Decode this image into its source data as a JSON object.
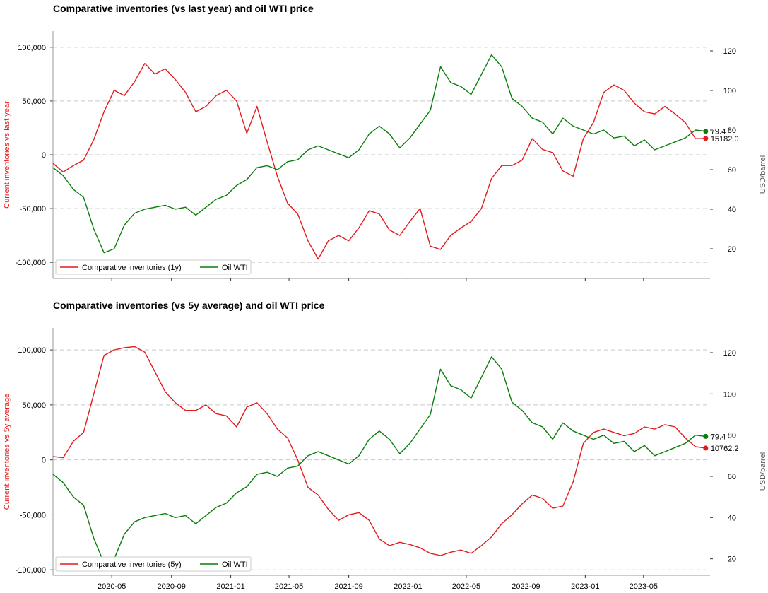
{
  "chart_data": [
    {
      "type": "line",
      "title": "Comparative inventories (vs last year) and oil WTI price",
      "ylabel": "Current inventories vs last year",
      "y2label": "USD/barrel",
      "ylim": [
        115000,
        -115000
      ],
      "y2lim": [
        5,
        130
      ],
      "yticks": [
        "-100,000",
        "-50,000",
        "0",
        "50,000",
        "100,000"
      ],
      "y2ticks": [
        "20",
        "40",
        "60",
        "80",
        "100",
        "120"
      ],
      "xticks": [],
      "xlim": [
        "2020-01-01",
        "2023-09-15"
      ],
      "grid": "y dashed",
      "legend": "lower-left",
      "series": [
        {
          "name": "Comparative inventories (1y)",
          "axis": "left",
          "color": "#e31a1c",
          "x": [
            "2020-01-01",
            "2020-01-22",
            "2020-02-12",
            "2020-03-04",
            "2020-03-25",
            "2020-04-15",
            "2020-05-06",
            "2020-05-27",
            "2020-06-17",
            "2020-07-08",
            "2020-07-29",
            "2020-08-19",
            "2020-09-09",
            "2020-09-30",
            "2020-10-21",
            "2020-11-11",
            "2020-12-02",
            "2020-12-23",
            "2021-01-13",
            "2021-02-03",
            "2021-02-24",
            "2021-03-17",
            "2021-04-07",
            "2021-04-28",
            "2021-05-19",
            "2021-06-09",
            "2021-06-30",
            "2021-07-21",
            "2021-08-11",
            "2021-09-01",
            "2021-09-22",
            "2021-10-13",
            "2021-11-03",
            "2021-11-24",
            "2021-12-15",
            "2022-01-05",
            "2022-01-26",
            "2022-02-16",
            "2022-03-09",
            "2022-03-30",
            "2022-04-20",
            "2022-05-11",
            "2022-06-01",
            "2022-06-22",
            "2022-07-13",
            "2022-08-03",
            "2022-08-24",
            "2022-09-14",
            "2022-10-05",
            "2022-10-26",
            "2022-11-16",
            "2022-12-07",
            "2022-12-28",
            "2023-01-18",
            "2023-02-08",
            "2023-03-01",
            "2023-03-22",
            "2023-04-12",
            "2023-05-03",
            "2023-05-24",
            "2023-06-14",
            "2023-07-05",
            "2023-07-26",
            "2023-08-16",
            "2023-09-06"
          ],
          "values": [
            -8000,
            -16000,
            -10000,
            -5000,
            14000,
            40000,
            60000,
            55000,
            68000,
            85000,
            75000,
            80000,
            70000,
            58000,
            40000,
            45000,
            55000,
            60000,
            50000,
            20000,
            45000,
            12000,
            -20000,
            -45000,
            -55000,
            -80000,
            -97000,
            -80000,
            -75000,
            -80000,
            -68000,
            -52000,
            -55000,
            -70000,
            -75000,
            -62000,
            -50000,
            -85000,
            -88000,
            -75000,
            -68000,
            -62000,
            -50000,
            -22000,
            -10000,
            -10000,
            -5000,
            15000,
            5000,
            2000,
            -15000,
            -20000,
            15000,
            30000,
            58000,
            65000,
            60000,
            48000,
            40000,
            38000,
            45000,
            38000,
            30000,
            15000,
            15182
          ]
        },
        {
          "name": "Oil WTI",
          "axis": "right",
          "color": "#0a7d0a",
          "x": [
            "2020-01-01",
            "2020-01-22",
            "2020-02-12",
            "2020-03-04",
            "2020-03-25",
            "2020-04-15",
            "2020-05-06",
            "2020-05-27",
            "2020-06-17",
            "2020-07-08",
            "2020-07-29",
            "2020-08-19",
            "2020-09-09",
            "2020-09-30",
            "2020-10-21",
            "2020-11-11",
            "2020-12-02",
            "2020-12-23",
            "2021-01-13",
            "2021-02-03",
            "2021-02-24",
            "2021-03-17",
            "2021-04-07",
            "2021-04-28",
            "2021-05-19",
            "2021-06-09",
            "2021-06-30",
            "2021-07-21",
            "2021-08-11",
            "2021-09-01",
            "2021-09-22",
            "2021-10-13",
            "2021-11-03",
            "2021-11-24",
            "2021-12-15",
            "2022-01-05",
            "2022-01-26",
            "2022-02-16",
            "2022-03-09",
            "2022-03-30",
            "2022-04-20",
            "2022-05-11",
            "2022-06-01",
            "2022-06-22",
            "2022-07-13",
            "2022-08-03",
            "2022-08-24",
            "2022-09-14",
            "2022-10-05",
            "2022-10-26",
            "2022-11-16",
            "2022-12-07",
            "2022-12-28",
            "2023-01-18",
            "2023-02-08",
            "2023-03-01",
            "2023-03-22",
            "2023-04-12",
            "2023-05-03",
            "2023-05-24",
            "2023-06-14",
            "2023-07-05",
            "2023-07-26",
            "2023-08-16",
            "2023-09-06"
          ],
          "values": [
            61,
            57,
            50,
            46,
            30,
            18,
            20,
            32,
            38,
            40,
            41,
            42,
            40,
            41,
            37,
            41,
            45,
            47,
            52,
            55,
            61,
            62,
            60,
            64,
            65,
            70,
            72,
            70,
            68,
            66,
            70,
            78,
            82,
            78,
            71,
            76,
            83,
            90,
            112,
            104,
            102,
            98,
            108,
            118,
            112,
            96,
            92,
            86,
            84,
            78,
            86,
            82,
            80,
            78,
            80,
            76,
            77,
            72,
            75,
            70,
            72,
            74,
            76,
            80,
            79.4
          ]
        }
      ],
      "end_labels": [
        {
          "series": "Oil WTI",
          "text": "79.4"
        },
        {
          "series": "Comparative inventories (1y)",
          "text": "15182.0"
        }
      ]
    },
    {
      "type": "line",
      "title": "Comparative inventories (vs 5y average) and oil WTI price",
      "ylabel": "Current inventories vs 5y average",
      "y2label": "USD/barrel",
      "ylim": [
        120000,
        -105000
      ],
      "y2lim": [
        12,
        132
      ],
      "yticks": [
        "-100,000",
        "-50,000",
        "0",
        "50,000",
        "100,000"
      ],
      "y2ticks": [
        "20",
        "40",
        "60",
        "80",
        "100",
        "120"
      ],
      "xticks": [
        "2020-05",
        "2020-09",
        "2021-01",
        "2021-05",
        "2021-09",
        "2022-01",
        "2022-05",
        "2022-09",
        "2023-01",
        "2023-05"
      ],
      "xlim": [
        "2020-01-01",
        "2023-09-15"
      ],
      "grid": "y dashed",
      "legend": "lower-left",
      "series": [
        {
          "name": "Comparative inventories (5y)",
          "axis": "left",
          "color": "#e31a1c",
          "x": [
            "2020-01-01",
            "2020-01-22",
            "2020-02-12",
            "2020-03-04",
            "2020-03-25",
            "2020-04-15",
            "2020-05-06",
            "2020-05-27",
            "2020-06-17",
            "2020-07-08",
            "2020-07-29",
            "2020-08-19",
            "2020-09-09",
            "2020-09-30",
            "2020-10-21",
            "2020-11-11",
            "2020-12-02",
            "2020-12-23",
            "2021-01-13",
            "2021-02-03",
            "2021-02-24",
            "2021-03-17",
            "2021-04-07",
            "2021-04-28",
            "2021-05-19",
            "2021-06-09",
            "2021-06-30",
            "2021-07-21",
            "2021-08-11",
            "2021-09-01",
            "2021-09-22",
            "2021-10-13",
            "2021-11-03",
            "2021-11-24",
            "2021-12-15",
            "2022-01-05",
            "2022-01-26",
            "2022-02-16",
            "2022-03-09",
            "2022-03-30",
            "2022-04-20",
            "2022-05-11",
            "2022-06-01",
            "2022-06-22",
            "2022-07-13",
            "2022-08-03",
            "2022-08-24",
            "2022-09-14",
            "2022-10-05",
            "2022-10-26",
            "2022-11-16",
            "2022-12-07",
            "2022-12-28",
            "2023-01-18",
            "2023-02-08",
            "2023-03-01",
            "2023-03-22",
            "2023-04-12",
            "2023-05-03",
            "2023-05-24",
            "2023-06-14",
            "2023-07-05",
            "2023-07-26",
            "2023-08-16",
            "2023-09-06"
          ],
          "values": [
            3000,
            2000,
            17000,
            25000,
            60000,
            95000,
            100000,
            102000,
            103000,
            98000,
            80000,
            62000,
            52000,
            45000,
            45000,
            50000,
            42000,
            40000,
            30000,
            48000,
            52000,
            42000,
            28000,
            20000,
            0,
            -25000,
            -32000,
            -45000,
            -55000,
            -50000,
            -48000,
            -55000,
            -72000,
            -78000,
            -75000,
            -77000,
            -80000,
            -85000,
            -87000,
            -84000,
            -82000,
            -85000,
            -78000,
            -70000,
            -58000,
            -50000,
            -40000,
            -32000,
            -35000,
            -44000,
            -42000,
            -20000,
            15000,
            25000,
            28000,
            25000,
            22000,
            24000,
            30000,
            28000,
            32000,
            30000,
            20000,
            12000,
            10762.2
          ]
        },
        {
          "name": "Oil WTI",
          "axis": "right",
          "color": "#0a7d0a",
          "x": [
            "2020-01-01",
            "2020-01-22",
            "2020-02-12",
            "2020-03-04",
            "2020-03-25",
            "2020-04-15",
            "2020-05-06",
            "2020-05-27",
            "2020-06-17",
            "2020-07-08",
            "2020-07-29",
            "2020-08-19",
            "2020-09-09",
            "2020-09-30",
            "2020-10-21",
            "2020-11-11",
            "2020-12-02",
            "2020-12-23",
            "2021-01-13",
            "2021-02-03",
            "2021-02-24",
            "2021-03-17",
            "2021-04-07",
            "2021-04-28",
            "2021-05-19",
            "2021-06-09",
            "2021-06-30",
            "2021-07-21",
            "2021-08-11",
            "2021-09-01",
            "2021-09-22",
            "2021-10-13",
            "2021-11-03",
            "2021-11-24",
            "2021-12-15",
            "2022-01-05",
            "2022-01-26",
            "2022-02-16",
            "2022-03-09",
            "2022-03-30",
            "2022-04-20",
            "2022-05-11",
            "2022-06-01",
            "2022-06-22",
            "2022-07-13",
            "2022-08-03",
            "2022-08-24",
            "2022-09-14",
            "2022-10-05",
            "2022-10-26",
            "2022-11-16",
            "2022-12-07",
            "2022-12-28",
            "2023-01-18",
            "2023-02-08",
            "2023-03-01",
            "2023-03-22",
            "2023-04-12",
            "2023-05-03",
            "2023-05-24",
            "2023-06-14",
            "2023-07-05",
            "2023-07-26",
            "2023-08-16",
            "2023-09-06"
          ],
          "values": [
            61,
            57,
            50,
            46,
            30,
            18,
            20,
            32,
            38,
            40,
            41,
            42,
            40,
            41,
            37,
            41,
            45,
            47,
            52,
            55,
            61,
            62,
            60,
            64,
            65,
            70,
            72,
            70,
            68,
            66,
            70,
            78,
            82,
            78,
            71,
            76,
            83,
            90,
            112,
            104,
            102,
            98,
            108,
            118,
            112,
            96,
            92,
            86,
            84,
            78,
            86,
            82,
            80,
            78,
            80,
            76,
            77,
            72,
            75,
            70,
            72,
            74,
            76,
            80,
            79.4
          ]
        }
      ],
      "end_labels": [
        {
          "series": "Oil WTI",
          "text": "79.4"
        },
        {
          "series": "Comparative inventories (5y)",
          "text": "10762.2"
        }
      ]
    }
  ]
}
